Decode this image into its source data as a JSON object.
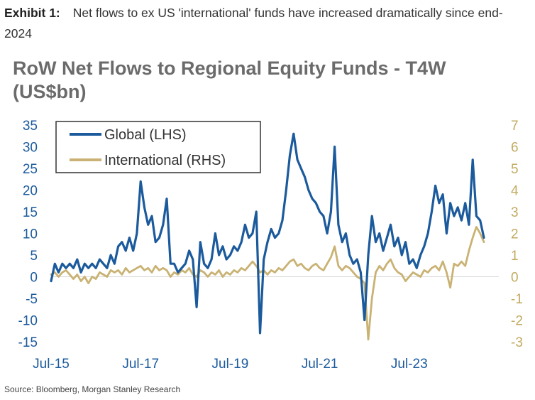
{
  "exhibit": {
    "label": "Exhibit 1:",
    "caption": "Net flows to ex US 'international' funds have increased dramatically since end-2024"
  },
  "source": "Source: Bloomberg, Morgan Stanley Research",
  "colors": {
    "global": "#1b5a9c",
    "international": "#c9b273",
    "title": "#6b6b6b"
  },
  "chart_data": {
    "type": "line",
    "title": "RoW Net Flows to Regional Equity Funds - T4W (US$bn)",
    "x_start": "2015-07",
    "x_end": "2025-07",
    "x_ticks": [
      {
        "date": "2015-07",
        "label": "Jul-15"
      },
      {
        "date": "2017-07",
        "label": "Jul-17"
      },
      {
        "date": "2019-07",
        "label": "Jul-19"
      },
      {
        "date": "2021-07",
        "label": "Jul-21"
      },
      {
        "date": "2023-07",
        "label": "Jul-23"
      }
    ],
    "y_left": {
      "min": -15,
      "max": 35,
      "ticks": [
        35,
        30,
        25,
        20,
        15,
        10,
        5,
        0,
        -5,
        -10,
        -15
      ]
    },
    "y_right": {
      "min": -3,
      "max": 7,
      "ticks": [
        7,
        6,
        5,
        4,
        3,
        2,
        1,
        0,
        -1,
        -2,
        -3
      ]
    },
    "legend_position": "top-left",
    "series": [
      {
        "name": "Global (LHS)",
        "axis": "left",
        "color": "#1b5a9c",
        "points": [
          [
            "2015-07",
            -1
          ],
          [
            "2015-08",
            3
          ],
          [
            "2015-09",
            1
          ],
          [
            "2015-10",
            3
          ],
          [
            "2015-11",
            2
          ],
          [
            "2015-12",
            3
          ],
          [
            "2016-01",
            2
          ],
          [
            "2016-02",
            4
          ],
          [
            "2016-03",
            1
          ],
          [
            "2016-04",
            3
          ],
          [
            "2016-05",
            2
          ],
          [
            "2016-06",
            3
          ],
          [
            "2016-07",
            2
          ],
          [
            "2016-08",
            4
          ],
          [
            "2016-09",
            3
          ],
          [
            "2016-10",
            2
          ],
          [
            "2016-11",
            5
          ],
          [
            "2016-12",
            3
          ],
          [
            "2017-01",
            7
          ],
          [
            "2017-02",
            8
          ],
          [
            "2017-03",
            6
          ],
          [
            "2017-04",
            9
          ],
          [
            "2017-05",
            6
          ],
          [
            "2017-06",
            10
          ],
          [
            "2017-07",
            22
          ],
          [
            "2017-08",
            16
          ],
          [
            "2017-09",
            12
          ],
          [
            "2017-10",
            14
          ],
          [
            "2017-11",
            8
          ],
          [
            "2017-12",
            9
          ],
          [
            "2018-01",
            12
          ],
          [
            "2018-02",
            18
          ],
          [
            "2018-03",
            3
          ],
          [
            "2018-04",
            3
          ],
          [
            "2018-05",
            1
          ],
          [
            "2018-06",
            2
          ],
          [
            "2018-07",
            3
          ],
          [
            "2018-08",
            6
          ],
          [
            "2018-09",
            4
          ],
          [
            "2018-10",
            -7
          ],
          [
            "2018-11",
            8
          ],
          [
            "2018-12",
            3
          ],
          [
            "2019-01",
            2
          ],
          [
            "2019-02",
            4
          ],
          [
            "2019-03",
            10
          ],
          [
            "2019-04",
            5
          ],
          [
            "2019-05",
            7
          ],
          [
            "2019-06",
            4
          ],
          [
            "2019-07",
            5
          ],
          [
            "2019-08",
            7
          ],
          [
            "2019-09",
            6
          ],
          [
            "2019-10",
            8
          ],
          [
            "2019-11",
            12
          ],
          [
            "2019-12",
            9
          ],
          [
            "2020-01",
            10
          ],
          [
            "2020-02",
            15
          ],
          [
            "2020-03",
            -13
          ],
          [
            "2020-04",
            4
          ],
          [
            "2020-05",
            8
          ],
          [
            "2020-06",
            11
          ],
          [
            "2020-07",
            9
          ],
          [
            "2020-08",
            10
          ],
          [
            "2020-09",
            13
          ],
          [
            "2020-10",
            20
          ],
          [
            "2020-11",
            28
          ],
          [
            "2020-12",
            33
          ],
          [
            "2021-01",
            27
          ],
          [
            "2021-02",
            25
          ],
          [
            "2021-03",
            23
          ],
          [
            "2021-04",
            20
          ],
          [
            "2021-05",
            18
          ],
          [
            "2021-06",
            17
          ],
          [
            "2021-07",
            15
          ],
          [
            "2021-08",
            14
          ],
          [
            "2021-09",
            10
          ],
          [
            "2021-10",
            15
          ],
          [
            "2021-11",
            30
          ],
          [
            "2021-12",
            12
          ],
          [
            "2022-01",
            8
          ],
          [
            "2022-02",
            10
          ],
          [
            "2022-03",
            5
          ],
          [
            "2022-04",
            3
          ],
          [
            "2022-05",
            4
          ],
          [
            "2022-06",
            1
          ],
          [
            "2022-07",
            -10
          ],
          [
            "2022-08",
            5
          ],
          [
            "2022-09",
            14
          ],
          [
            "2022-10",
            8
          ],
          [
            "2022-11",
            10
          ],
          [
            "2022-12",
            6
          ],
          [
            "2023-01",
            9
          ],
          [
            "2023-02",
            12
          ],
          [
            "2023-03",
            7
          ],
          [
            "2023-04",
            9
          ],
          [
            "2023-05",
            5
          ],
          [
            "2023-06",
            8
          ],
          [
            "2023-07",
            3
          ],
          [
            "2023-08",
            4
          ],
          [
            "2023-09",
            2
          ],
          [
            "2023-10",
            5
          ],
          [
            "2023-11",
            7
          ],
          [
            "2023-12",
            10
          ],
          [
            "2024-01",
            15
          ],
          [
            "2024-02",
            21
          ],
          [
            "2024-03",
            17
          ],
          [
            "2024-04",
            19
          ],
          [
            "2024-05",
            10
          ],
          [
            "2024-06",
            17
          ],
          [
            "2024-07",
            14
          ],
          [
            "2024-08",
            16
          ],
          [
            "2024-09",
            13
          ],
          [
            "2024-10",
            17
          ],
          [
            "2024-11",
            12
          ],
          [
            "2024-12",
            27
          ],
          [
            "2025-01",
            14
          ],
          [
            "2025-02",
            13
          ],
          [
            "2025-03",
            9
          ]
        ]
      },
      {
        "name": "International (RHS)",
        "axis": "right",
        "color": "#c9b273",
        "points": [
          [
            "2015-07",
            0.1
          ],
          [
            "2015-08",
            0.2
          ],
          [
            "2015-09",
            0.0
          ],
          [
            "2015-10",
            0.2
          ],
          [
            "2015-11",
            0.3
          ],
          [
            "2015-12",
            0.1
          ],
          [
            "2016-01",
            -0.1
          ],
          [
            "2016-02",
            0.1
          ],
          [
            "2016-03",
            -0.2
          ],
          [
            "2016-04",
            0.0
          ],
          [
            "2016-05",
            -0.3
          ],
          [
            "2016-06",
            0.0
          ],
          [
            "2016-07",
            -0.1
          ],
          [
            "2016-08",
            0.2
          ],
          [
            "2016-09",
            0.1
          ],
          [
            "2016-10",
            0.0
          ],
          [
            "2016-11",
            0.3
          ],
          [
            "2016-12",
            0.2
          ],
          [
            "2017-01",
            0.3
          ],
          [
            "2017-02",
            0.1
          ],
          [
            "2017-03",
            0.4
          ],
          [
            "2017-04",
            0.2
          ],
          [
            "2017-05",
            0.3
          ],
          [
            "2017-06",
            0.4
          ],
          [
            "2017-07",
            0.5
          ],
          [
            "2017-08",
            0.3
          ],
          [
            "2017-09",
            0.4
          ],
          [
            "2017-10",
            0.2
          ],
          [
            "2017-11",
            0.5
          ],
          [
            "2017-12",
            0.3
          ],
          [
            "2018-01",
            0.4
          ],
          [
            "2018-02",
            0.3
          ],
          [
            "2018-03",
            0.0
          ],
          [
            "2018-04",
            0.2
          ],
          [
            "2018-05",
            0.1
          ],
          [
            "2018-06",
            0.3
          ],
          [
            "2018-07",
            0.2
          ],
          [
            "2018-08",
            0.4
          ],
          [
            "2018-09",
            0.1
          ],
          [
            "2018-10",
            0.0
          ],
          [
            "2018-11",
            0.3
          ],
          [
            "2018-12",
            0.2
          ],
          [
            "2019-01",
            0.0
          ],
          [
            "2019-02",
            0.2
          ],
          [
            "2019-03",
            0.1
          ],
          [
            "2019-04",
            0.3
          ],
          [
            "2019-05",
            0.0
          ],
          [
            "2019-06",
            0.2
          ],
          [
            "2019-07",
            0.1
          ],
          [
            "2019-08",
            0.3
          ],
          [
            "2019-09",
            0.2
          ],
          [
            "2019-10",
            0.4
          ],
          [
            "2019-11",
            0.3
          ],
          [
            "2019-12",
            0.5
          ],
          [
            "2020-01",
            0.7
          ],
          [
            "2020-02",
            0.5
          ],
          [
            "2020-03",
            0.2
          ],
          [
            "2020-04",
            0.3
          ],
          [
            "2020-05",
            0.1
          ],
          [
            "2020-06",
            0.3
          ],
          [
            "2020-07",
            0.2
          ],
          [
            "2020-08",
            0.4
          ],
          [
            "2020-09",
            0.3
          ],
          [
            "2020-10",
            0.5
          ],
          [
            "2020-11",
            0.7
          ],
          [
            "2020-12",
            0.8
          ],
          [
            "2021-01",
            0.5
          ],
          [
            "2021-02",
            0.6
          ],
          [
            "2021-03",
            0.4
          ],
          [
            "2021-04",
            0.3
          ],
          [
            "2021-05",
            0.5
          ],
          [
            "2021-06",
            0.6
          ],
          [
            "2021-07",
            0.4
          ],
          [
            "2021-08",
            0.3
          ],
          [
            "2021-09",
            0.6
          ],
          [
            "2021-10",
            0.9
          ],
          [
            "2021-11",
            1.4
          ],
          [
            "2021-12",
            0.5
          ],
          [
            "2022-01",
            0.3
          ],
          [
            "2022-02",
            0.5
          ],
          [
            "2022-03",
            0.4
          ],
          [
            "2022-04",
            0.2
          ],
          [
            "2022-05",
            0.0
          ],
          [
            "2022-06",
            -0.1
          ],
          [
            "2022-07",
            -0.3
          ],
          [
            "2022-08",
            -2.9
          ],
          [
            "2022-09",
            -1.0
          ],
          [
            "2022-10",
            0.2
          ],
          [
            "2022-11",
            0.5
          ],
          [
            "2022-12",
            0.3
          ],
          [
            "2023-01",
            0.6
          ],
          [
            "2023-02",
            0.8
          ],
          [
            "2023-03",
            0.4
          ],
          [
            "2023-04",
            0.2
          ],
          [
            "2023-05",
            0.1
          ],
          [
            "2023-06",
            -0.2
          ],
          [
            "2023-07",
            0.0
          ],
          [
            "2023-08",
            0.2
          ],
          [
            "2023-09",
            0.1
          ],
          [
            "2023-10",
            0.0
          ],
          [
            "2023-11",
            0.3
          ],
          [
            "2023-12",
            0.2
          ],
          [
            "2024-01",
            0.4
          ],
          [
            "2024-02",
            0.5
          ],
          [
            "2024-03",
            0.3
          ],
          [
            "2024-04",
            0.7
          ],
          [
            "2024-05",
            0.2
          ],
          [
            "2024-06",
            -0.5
          ],
          [
            "2024-07",
            0.6
          ],
          [
            "2024-08",
            0.5
          ],
          [
            "2024-09",
            0.7
          ],
          [
            "2024-10",
            0.5
          ],
          [
            "2024-11",
            1.2
          ],
          [
            "2024-12",
            1.8
          ],
          [
            "2025-01",
            2.3
          ],
          [
            "2025-02",
            2.0
          ],
          [
            "2025-03",
            1.6
          ]
        ]
      }
    ]
  }
}
